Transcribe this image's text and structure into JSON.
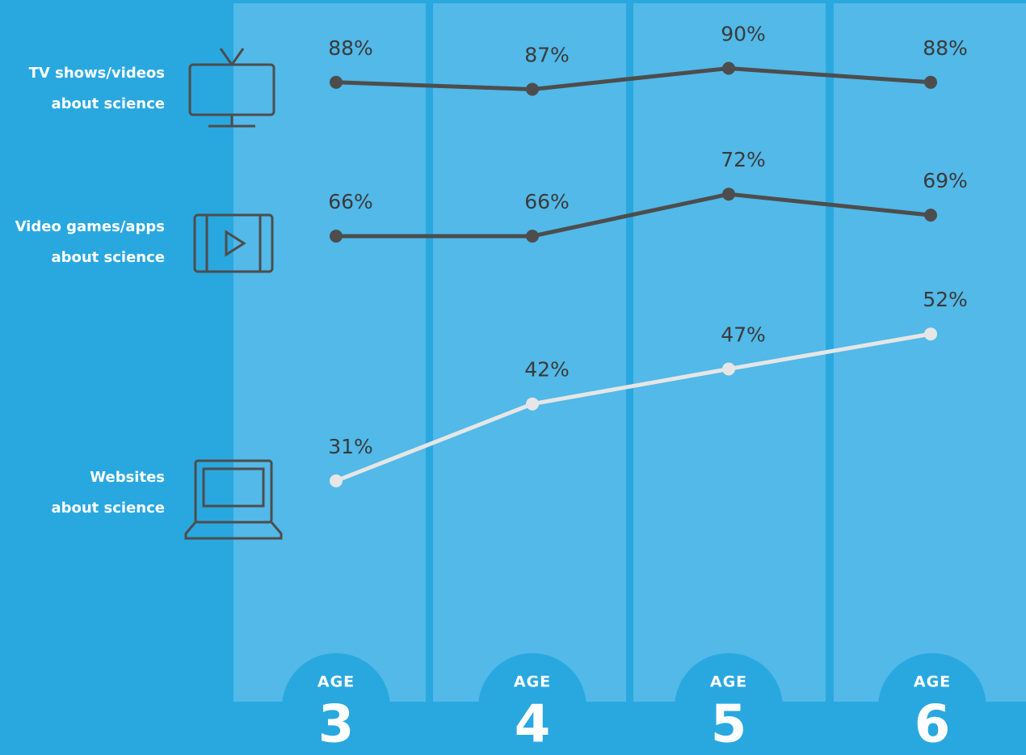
{
  "chart_data": {
    "type": "line",
    "category_prefix": "AGE",
    "categories": [
      "3",
      "4",
      "5",
      "6"
    ],
    "ylim": [
      0,
      100
    ],
    "series": [
      {
        "name": "TV shows/videos\nabout science",
        "color": "#4d4d4d",
        "values": [
          88,
          87,
          90,
          88
        ],
        "value_labels": [
          "88%",
          "87%",
          "90%",
          "88%"
        ]
      },
      {
        "name": "Video games/apps\nabout science",
        "color": "#4d4d4d",
        "values": [
          66,
          66,
          72,
          69
        ],
        "value_labels": [
          "66%",
          "66%",
          "72%",
          "69%"
        ]
      },
      {
        "name": "Websites\nabout science",
        "color": "#e6e6e6",
        "values": [
          31,
          42,
          47,
          52
        ],
        "value_labels": [
          "31%",
          "42%",
          "47%",
          "52%"
        ]
      }
    ]
  }
}
